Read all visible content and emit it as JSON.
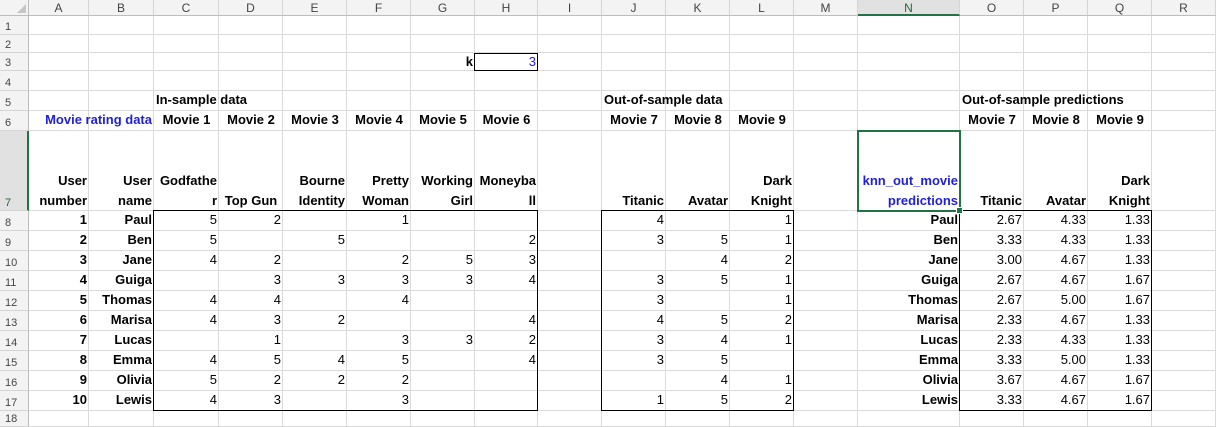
{
  "columns": [
    "A",
    "B",
    "C",
    "D",
    "E",
    "F",
    "G",
    "H",
    "I",
    "J",
    "K",
    "L",
    "M",
    "N",
    "O",
    "P",
    "Q",
    "R"
  ],
  "rows": [
    "1",
    "2",
    "3",
    "4",
    "5",
    "6",
    "7",
    "8",
    "9",
    "10",
    "11",
    "12",
    "13",
    "14",
    "15",
    "16",
    "17",
    "18"
  ],
  "selected_column": "N",
  "selected_row": "7",
  "k_label": "k",
  "k_value": "3",
  "in_sample_title": "In-sample data",
  "out_sample_title": "Out-of-sample data",
  "predictions_title": "Out-of-sample predictions",
  "movie_rating_label": "Movie rating data",
  "in_movies": [
    "Movie 1",
    "Movie 2",
    "Movie 3",
    "Movie 4",
    "Movie 5",
    "Movie 6"
  ],
  "out_movies": [
    "Movie 7",
    "Movie 8",
    "Movie 9"
  ],
  "pred_movies": [
    "Movie 7",
    "Movie 8",
    "Movie 9"
  ],
  "header7": {
    "user_number": "User number",
    "user_name": "User name",
    "in_titles": [
      "Godfathe r",
      "Top Gun",
      "Bourne Identity",
      "Pretty Woman",
      "Working Girl",
      "Moneyba ll"
    ],
    "out_titles": [
      "Titanic",
      "Avatar",
      "Dark Knight"
    ],
    "pred_label": "knn_out_movie predictions",
    "pred_titles": [
      "Titanic",
      "Avatar",
      "Dark Knight"
    ]
  },
  "users": [
    {
      "num": "1",
      "name": "Paul",
      "in": [
        "5",
        "2",
        "",
        "1",
        "",
        ""
      ],
      "out": [
        "4",
        "",
        "1"
      ],
      "pred": [
        "2.67",
        "4.33",
        "1.33"
      ]
    },
    {
      "num": "2",
      "name": "Ben",
      "in": [
        "5",
        "",
        "5",
        "",
        "",
        "2"
      ],
      "out": [
        "3",
        "5",
        "1"
      ],
      "pred": [
        "3.33",
        "4.33",
        "1.33"
      ]
    },
    {
      "num": "3",
      "name": "Jane",
      "in": [
        "4",
        "2",
        "",
        "2",
        "5",
        "3"
      ],
      "out": [
        "",
        "4",
        "2"
      ],
      "pred": [
        "3.00",
        "4.67",
        "1.33"
      ]
    },
    {
      "num": "4",
      "name": "Guiga",
      "in": [
        "",
        "3",
        "3",
        "3",
        "3",
        "4"
      ],
      "out": [
        "3",
        "5",
        "1"
      ],
      "pred": [
        "2.67",
        "4.67",
        "1.67"
      ]
    },
    {
      "num": "5",
      "name": "Thomas",
      "in": [
        "4",
        "4",
        "",
        "4",
        "",
        ""
      ],
      "out": [
        "3",
        "",
        "1"
      ],
      "pred": [
        "2.67",
        "5.00",
        "1.67"
      ]
    },
    {
      "num": "6",
      "name": "Marisa",
      "in": [
        "4",
        "3",
        "2",
        "",
        "",
        "4"
      ],
      "out": [
        "4",
        "5",
        "2"
      ],
      "pred": [
        "2.33",
        "4.67",
        "1.33"
      ]
    },
    {
      "num": "7",
      "name": "Lucas",
      "in": [
        "",
        "1",
        "",
        "3",
        "3",
        "2"
      ],
      "out": [
        "3",
        "4",
        "1"
      ],
      "pred": [
        "2.33",
        "4.33",
        "1.33"
      ]
    },
    {
      "num": "8",
      "name": "Emma",
      "in": [
        "4",
        "5",
        "4",
        "5",
        "",
        "4"
      ],
      "out": [
        "3",
        "5",
        ""
      ],
      "pred": [
        "3.33",
        "5.00",
        "1.33"
      ]
    },
    {
      "num": "9",
      "name": "Olivia",
      "in": [
        "5",
        "2",
        "2",
        "2",
        "",
        ""
      ],
      "out": [
        "",
        "4",
        "1"
      ],
      "pred": [
        "3.67",
        "4.67",
        "1.67"
      ]
    },
    {
      "num": "10",
      "name": "Lewis",
      "in": [
        "4",
        "3",
        "",
        "3",
        "",
        ""
      ],
      "out": [
        "1",
        "5",
        "2"
      ],
      "pred": [
        "3.33",
        "4.67",
        "1.67"
      ]
    }
  ]
}
